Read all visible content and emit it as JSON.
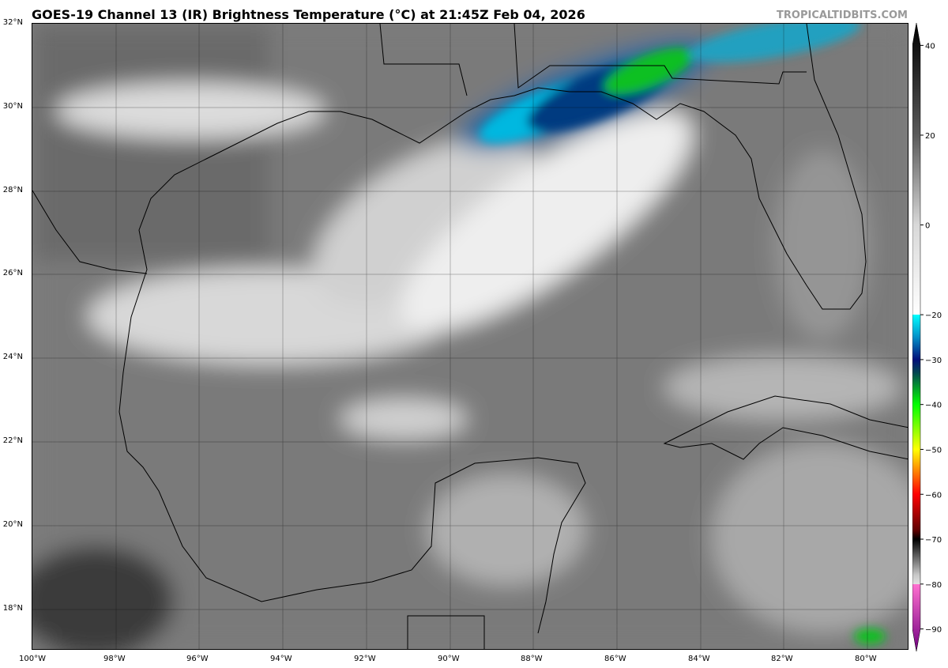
{
  "title": "GOES-19 Channel 13 (IR) Brightness Temperature (°C) at 21:45Z Feb 04, 2026",
  "brand": "TROPICALTIDBITS.COM",
  "map": {
    "lat_labels": [
      "32°N",
      "30°N",
      "28°N",
      "26°N",
      "24°N",
      "22°N",
      "20°N",
      "18°N"
    ],
    "lon_labels": [
      "100°W",
      "98°W",
      "96°W",
      "94°W",
      "92°W",
      "90°W",
      "88°W",
      "86°W",
      "84°W",
      "82°W",
      "80°W"
    ],
    "lat_range": [
      17,
      32
    ],
    "lon_range": [
      -100,
      -79
    ]
  },
  "colorbar": {
    "ticks": [
      "40",
      "20",
      "0",
      "−20",
      "−30",
      "−40",
      "−50",
      "−60",
      "−70",
      "−80",
      "−90"
    ],
    "range": [
      -95,
      45
    ],
    "stops": [
      {
        "t": 45,
        "c": "#000000"
      },
      {
        "t": 20,
        "c": "#5a5a5a"
      },
      {
        "t": 0,
        "c": "#d8d8d8"
      },
      {
        "t": -20,
        "c": "#ffffff"
      },
      {
        "t": -20,
        "c": "#00ffff"
      },
      {
        "t": -25,
        "c": "#0090c8"
      },
      {
        "t": -30,
        "c": "#00107a"
      },
      {
        "t": -33,
        "c": "#004850"
      },
      {
        "t": -40,
        "c": "#00ff00"
      },
      {
        "t": -50,
        "c": "#ffff00"
      },
      {
        "t": -55,
        "c": "#ff8000"
      },
      {
        "t": -60,
        "c": "#ff0000"
      },
      {
        "t": -68,
        "c": "#600000"
      },
      {
        "t": -70,
        "c": "#000000"
      },
      {
        "t": -78,
        "c": "#c8c8c8"
      },
      {
        "t": -80,
        "c": "#e0e0e0"
      },
      {
        "t": -80,
        "c": "#ff70d0"
      },
      {
        "t": -95,
        "c": "#700080"
      }
    ]
  }
}
